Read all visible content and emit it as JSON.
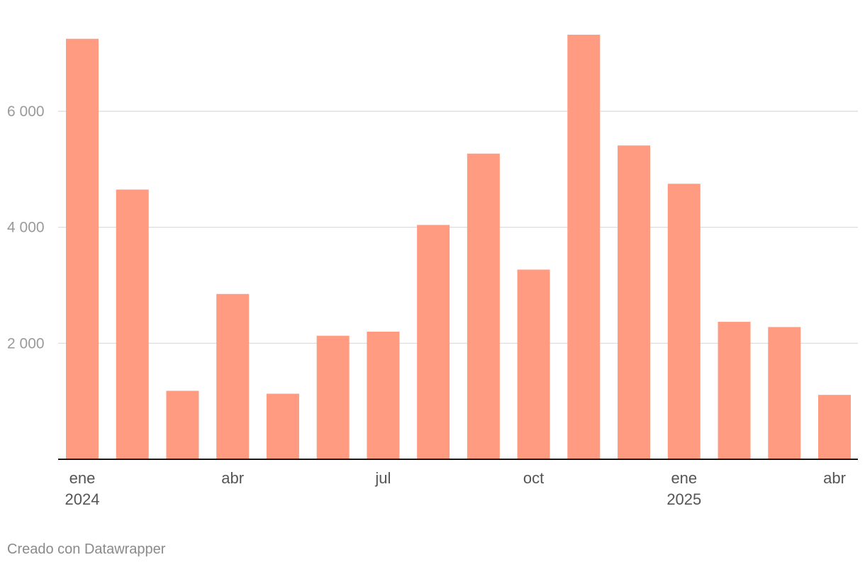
{
  "chart_data": {
    "type": "bar",
    "title": "",
    "xlabel": "",
    "ylabel": "",
    "ylim": [
      0,
      7500
    ],
    "grid": true,
    "colors": {
      "bar": "#ff9b81",
      "grid": "#d9d9d9",
      "baseline": "#1a1a1a"
    },
    "categories": [
      "2024-01",
      "2024-02",
      "2024-03",
      "2024-04",
      "2024-05",
      "2024-06",
      "2024-07",
      "2024-08",
      "2024-09",
      "2024-10",
      "2024-11",
      "2024-12",
      "2025-01",
      "2025-02",
      "2025-03",
      "2025-04"
    ],
    "values": [
      7250,
      4650,
      1180,
      2850,
      1130,
      2130,
      2200,
      4040,
      5270,
      3270,
      7320,
      5410,
      4750,
      2370,
      2280,
      1110
    ],
    "y_ticks": [
      {
        "value": 2000,
        "label": "2 000"
      },
      {
        "value": 4000,
        "label": "4 000"
      },
      {
        "value": 6000,
        "label": "6 000"
      }
    ],
    "x_ticks": [
      {
        "index": 0,
        "label": "ene",
        "sublabel": "2024"
      },
      {
        "index": 3,
        "label": "abr",
        "sublabel": ""
      },
      {
        "index": 6,
        "label": "jul",
        "sublabel": ""
      },
      {
        "index": 9,
        "label": "oct",
        "sublabel": ""
      },
      {
        "index": 12,
        "label": "ene",
        "sublabel": "2025"
      },
      {
        "index": 15,
        "label": "abr",
        "sublabel": ""
      }
    ]
  },
  "footer": {
    "credit": "Creado con Datawrapper"
  }
}
